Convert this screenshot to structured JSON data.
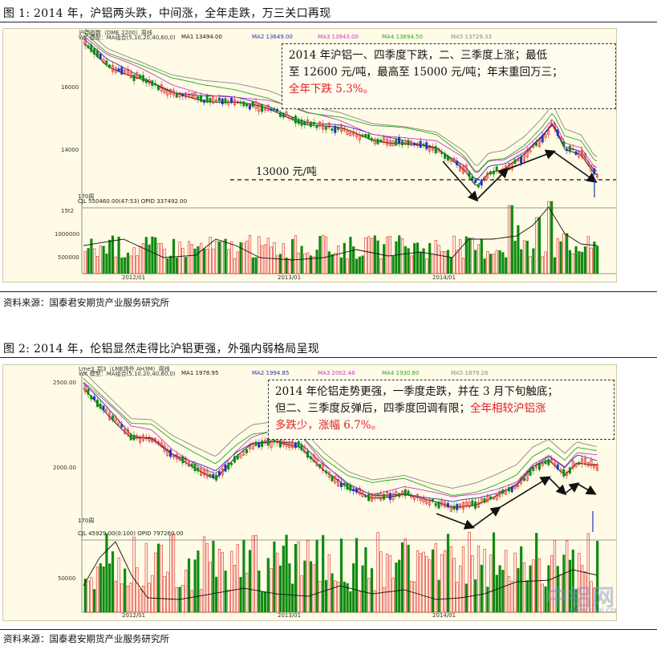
{
  "figure1": {
    "title": "图 1:    2014 年，沪铝两头跌，中间涨，全年走跌，万三关口再现",
    "legend": {
      "name": "沪铝指数（DME 2200）周线",
      "model": "WK   模型：MA组合(5,10,20,40,60,0)",
      "ma1": "MA1 13494.00",
      "ma2": "MA2 13649.00",
      "ma3": "MA3 13943.00",
      "ma4": "MA4 13694.50",
      "ma5": "MA5 13729.33"
    },
    "note_line1": "2014 年沪铝一、四季度下跌，二、三季度上涨；最低",
    "note_line2": "至 12600 元/吨，最高至 15000 元/吨；年末重回万三；",
    "note_red": "全年下跌 5.3%。",
    "level_label": "13000 元/吨",
    "y_ticks": [
      "16000",
      "14000"
    ],
    "vol_ticks": [
      "15t2",
      "1000000",
      "500000"
    ],
    "info_line": "CJL  550460.00(47:53)     OPID 337492.00",
    "count_label": "170周",
    "x_ticks": [
      "2012/01",
      "2013/01",
      "2014/01"
    ],
    "source": "资料来源：国泰君安期货产业服务研究所",
    "colors": {
      "up": "#e02020",
      "down": "#108a10",
      "line": "#111111"
    }
  },
  "figure2": {
    "title": "图 2:    2014 年，伦铝显然走得比沪铝更强，外强内弱格局呈现",
    "legend": {
      "name": "Lme3_铝3（LME场外 AH3M）周线",
      "model": "WK   模型：MA组合(5,10,20,40,60,0)",
      "ma1": "MA1 1978.95",
      "ma2": "MA2 1994.85",
      "ma3": "MA3 2002.48",
      "ma4": "MA4 1930.80",
      "ma5": "MA5 1879.26"
    },
    "note_line1": "2014 年伦铝走势更强，一季度走跌，并在 3 月下旬触底；",
    "note_line2_black": "但二、三季度反弹后，四季度回调有限；",
    "note_line2_red": "全年相较沪铝涨",
    "note_line3_red": "多跌少，涨幅 6.7%。",
    "y_ticks": [
      "2500.00",
      "2000.00"
    ],
    "vol_ticks": [
      "50000"
    ],
    "info_line": "CJL   45929.00(0:100)     OPID 797260.00",
    "count_label": "170周",
    "x_ticks": [
      "2012/01",
      "2013/01",
      "2014/01"
    ],
    "source": "资料来源：国泰君安期货产业服务研究所",
    "watermark": "中铝网",
    "watermark_url": "www.cnal.com",
    "colors": {
      "up": "#e02020",
      "down": "#108a10",
      "line": "#111111"
    }
  }
}
